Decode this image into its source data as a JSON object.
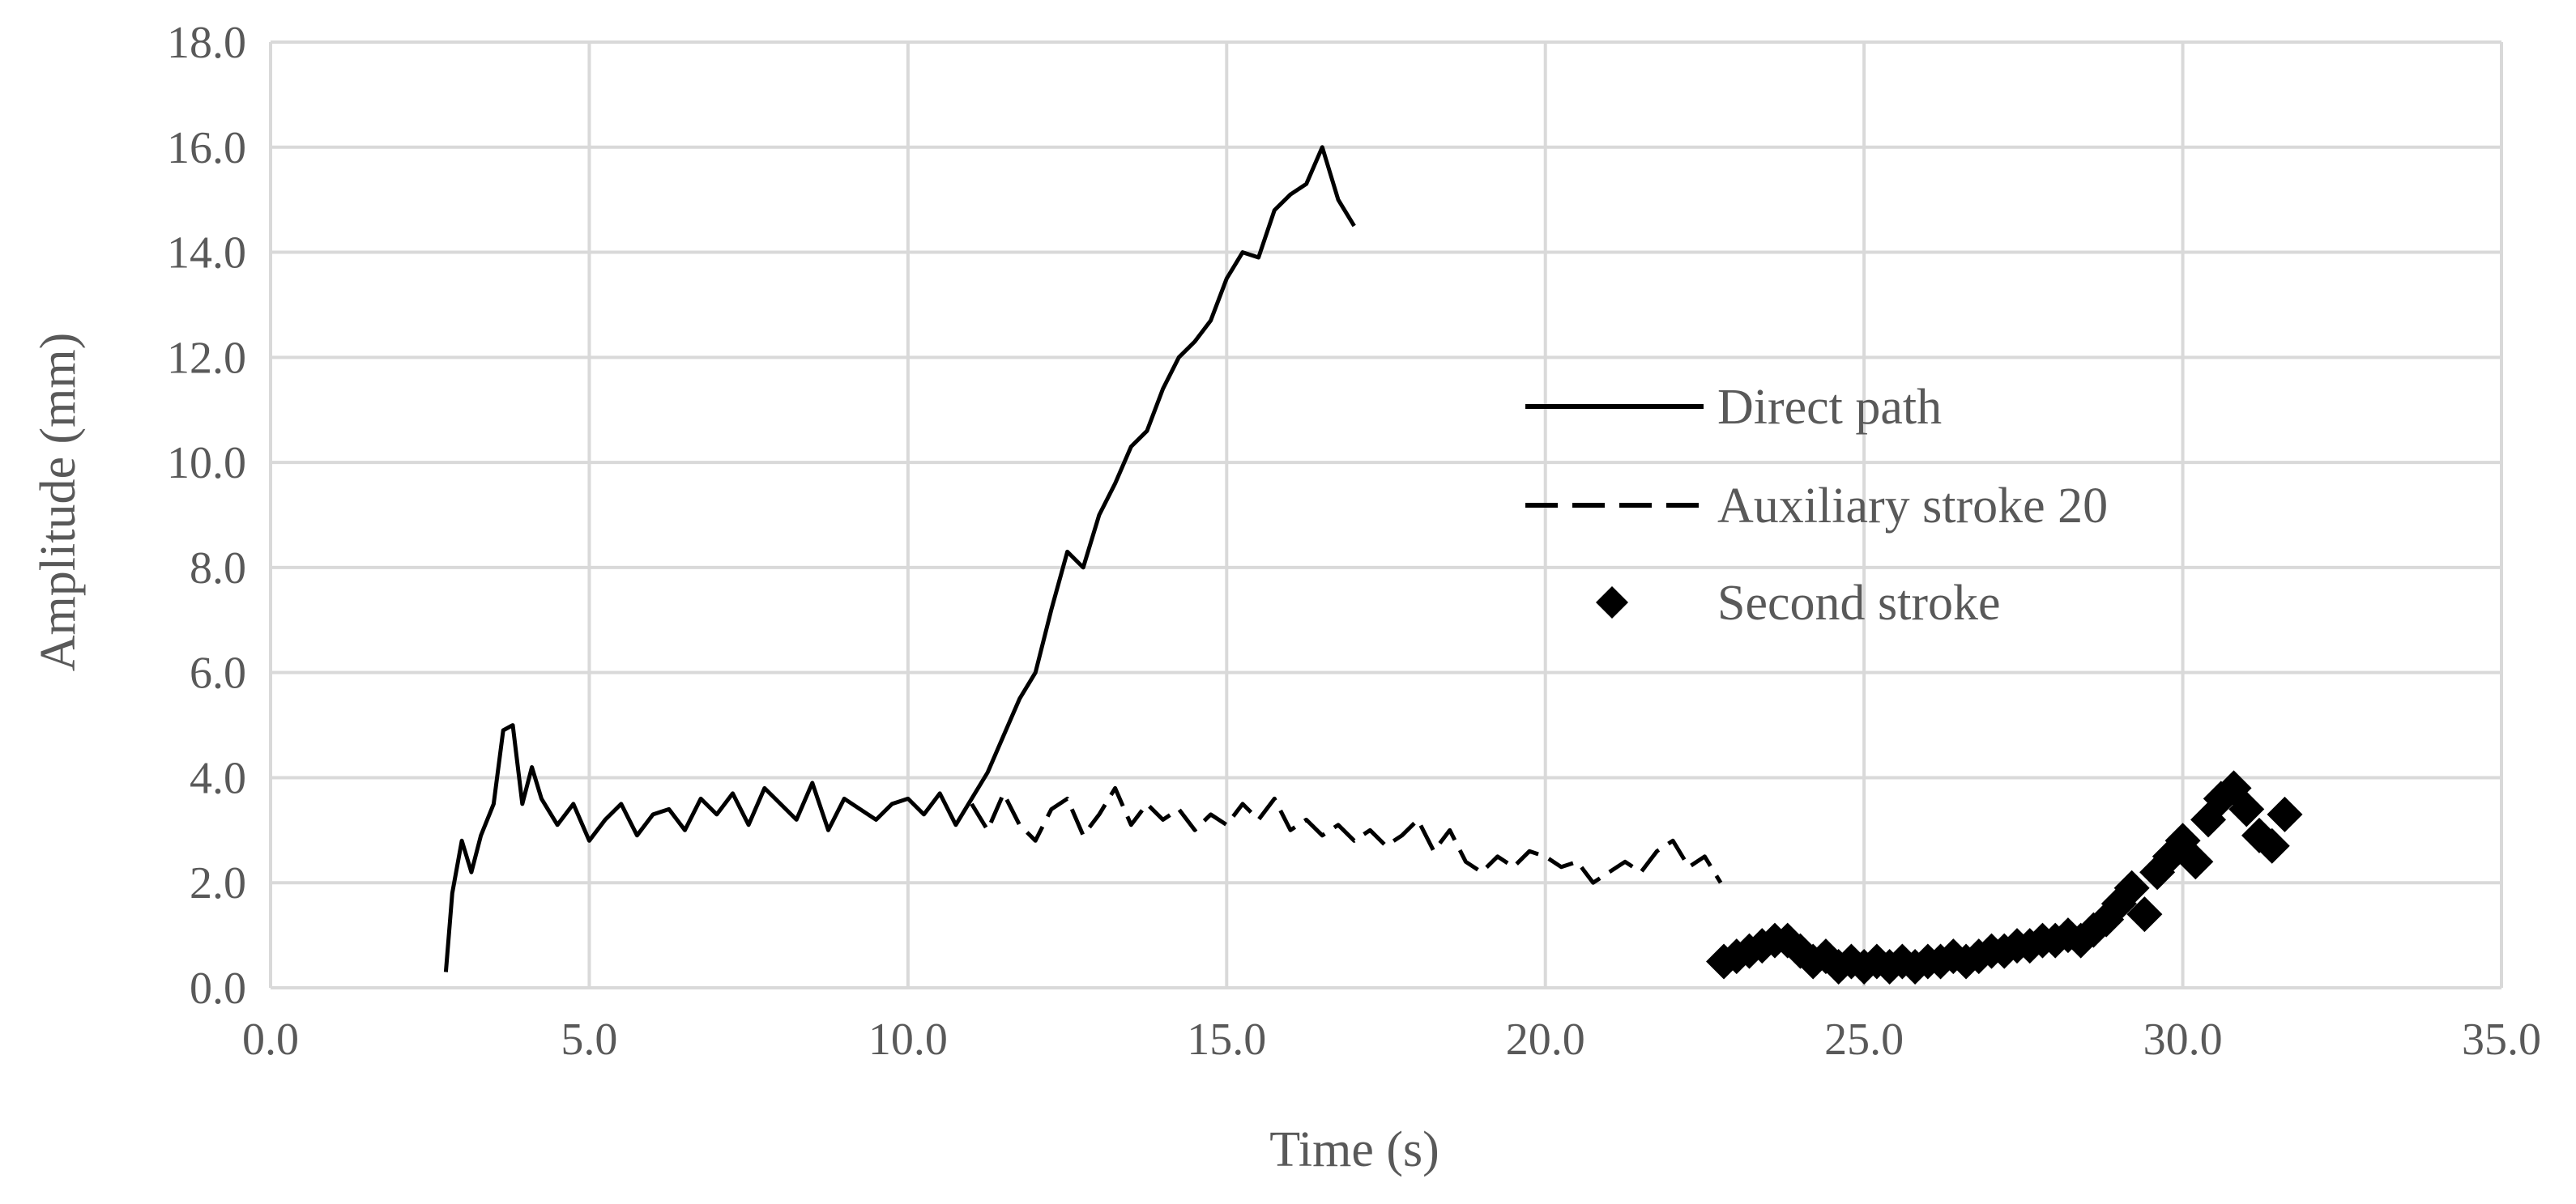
{
  "chart_data": {
    "type": "line",
    "xlabel": "Time (s)",
    "ylabel": "Amplitude (mm)",
    "xlim": [
      0,
      35
    ],
    "ylim": [
      0,
      18
    ],
    "xticks": [
      "0.0",
      "5.0",
      "10.0",
      "15.0",
      "20.0",
      "25.0",
      "30.0",
      "35.0"
    ],
    "yticks": [
      "0.0",
      "2.0",
      "4.0",
      "6.0",
      "8.0",
      "10.0",
      "12.0",
      "14.0",
      "16.0",
      "18.0"
    ],
    "grid": true,
    "legend_position": "right-middle",
    "series": [
      {
        "name": "Direct path",
        "style": "solid",
        "x": [
          2.75,
          2.85,
          3.0,
          3.15,
          3.3,
          3.5,
          3.65,
          3.8,
          3.95,
          4.1,
          4.25,
          4.5,
          4.75,
          5.0,
          5.25,
          5.5,
          5.75,
          6.0,
          6.25,
          6.5,
          6.75,
          7.0,
          7.25,
          7.5,
          7.75,
          8.0,
          8.25,
          8.5,
          8.75,
          9.0,
          9.25,
          9.5,
          9.75,
          10.0,
          10.25,
          10.5,
          10.75,
          11.0,
          11.25,
          11.5,
          11.75,
          12.0,
          12.25,
          12.5,
          12.75,
          13.0,
          13.25,
          13.5,
          13.75,
          14.0,
          14.25,
          14.5,
          14.75,
          15.0,
          15.25,
          15.5,
          15.75,
          16.0,
          16.25,
          16.5,
          16.75,
          17.0
        ],
        "y": [
          0.3,
          1.8,
          2.8,
          2.2,
          2.9,
          3.5,
          4.9,
          5.0,
          3.5,
          4.2,
          3.6,
          3.1,
          3.5,
          2.8,
          3.2,
          3.5,
          2.9,
          3.3,
          3.4,
          3.0,
          3.6,
          3.3,
          3.7,
          3.1,
          3.8,
          3.5,
          3.2,
          3.9,
          3.0,
          3.6,
          3.4,
          3.2,
          3.5,
          3.6,
          3.3,
          3.7,
          3.1,
          3.6,
          4.1,
          4.8,
          5.5,
          6.0,
          7.2,
          8.3,
          8.0,
          9.0,
          9.6,
          10.3,
          10.6,
          11.4,
          12.0,
          12.3,
          12.7,
          13.5,
          14.0,
          13.9,
          14.8,
          15.1,
          15.3,
          16.0,
          15.0,
          14.5
        ]
      },
      {
        "name": "Auxiliary stroke 20",
        "style": "dashed",
        "x": [
          11.0,
          11.25,
          11.5,
          11.75,
          12.0,
          12.25,
          12.5,
          12.75,
          13.0,
          13.25,
          13.5,
          13.75,
          14.0,
          14.25,
          14.5,
          14.75,
          15.0,
          15.25,
          15.5,
          15.75,
          16.0,
          16.25,
          16.5,
          16.75,
          17.0,
          17.25,
          17.5,
          17.75,
          18.0,
          18.25,
          18.5,
          18.75,
          19.0,
          19.25,
          19.5,
          19.75,
          20.0,
          20.25,
          20.5,
          20.75,
          21.0,
          21.25,
          21.5,
          21.75,
          22.0,
          22.25,
          22.5,
          22.75
        ],
        "y": [
          3.5,
          3.0,
          3.7,
          3.1,
          2.8,
          3.4,
          3.6,
          2.9,
          3.3,
          3.8,
          3.1,
          3.5,
          3.2,
          3.4,
          3.0,
          3.3,
          3.1,
          3.5,
          3.2,
          3.6,
          3.0,
          3.2,
          2.9,
          3.1,
          2.8,
          3.0,
          2.7,
          2.9,
          3.2,
          2.6,
          3.0,
          2.4,
          2.2,
          2.5,
          2.3,
          2.6,
          2.5,
          2.3,
          2.4,
          2.0,
          2.2,
          2.4,
          2.2,
          2.6,
          2.8,
          2.3,
          2.5,
          2.0
        ]
      },
      {
        "name": "Second stroke",
        "style": "diamond",
        "x": [
          22.8,
          23.0,
          23.2,
          23.4,
          23.6,
          23.8,
          24.0,
          24.2,
          24.4,
          24.6,
          24.8,
          25.0,
          25.2,
          25.4,
          25.6,
          25.8,
          26.0,
          26.2,
          26.4,
          26.6,
          26.8,
          27.0,
          27.2,
          27.4,
          27.6,
          27.8,
          28.0,
          28.2,
          28.4,
          28.6,
          28.8,
          29.0,
          29.2,
          29.4,
          29.6,
          29.8,
          30.0,
          30.2,
          30.4,
          30.6,
          30.8,
          31.0,
          31.2,
          31.4,
          31.6
        ],
        "y": [
          0.5,
          0.6,
          0.7,
          0.8,
          0.9,
          0.9,
          0.7,
          0.5,
          0.6,
          0.4,
          0.5,
          0.4,
          0.5,
          0.4,
          0.5,
          0.4,
          0.5,
          0.5,
          0.6,
          0.5,
          0.6,
          0.7,
          0.7,
          0.8,
          0.8,
          0.9,
          0.9,
          1.0,
          0.9,
          1.1,
          1.3,
          1.6,
          1.9,
          1.4,
          2.2,
          2.5,
          2.8,
          2.4,
          3.2,
          3.6,
          3.8,
          3.4,
          2.9,
          2.7,
          3.3
        ]
      }
    ]
  }
}
